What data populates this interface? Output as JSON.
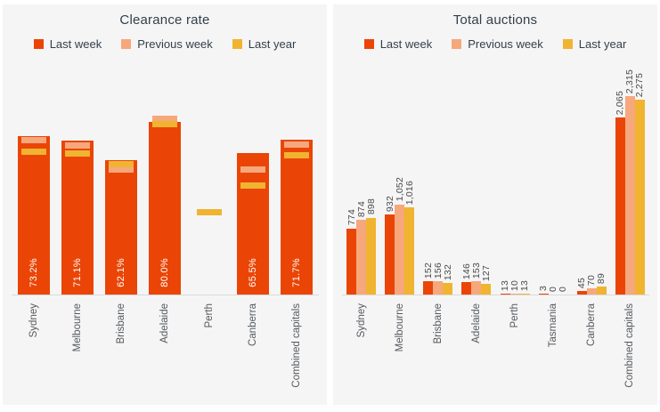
{
  "colors": {
    "last_week": "#EA4506",
    "previous_week": "#F6A87C",
    "last_year": "#F0B431",
    "panel_background": "#F5F5F6",
    "axis_line": "#D9D9D9",
    "title_text": "#333F48",
    "value_label_text": "#4A4A4A",
    "category_label_text": "#55595C",
    "bar_label_text": "#FFFFFF"
  },
  "chart_data": [
    {
      "type": "bar",
      "title": "Clearance rate",
      "legend_position": "top",
      "grid": false,
      "unit": "percent",
      "ylim": [
        0,
        95
      ],
      "categories": [
        "Sydney",
        "Melbourne",
        "Brisbane",
        "Adelaide",
        "Perth",
        "Canberra",
        "Combined capitals"
      ],
      "series": [
        {
          "name": "Last week",
          "render": "bar",
          "values": [
            73.2,
            71.1,
            62.1,
            80.0,
            null,
            65.5,
            71.7
          ],
          "labels": [
            "73.2%",
            "71.1%",
            "62.1%",
            "80.0%",
            "",
            "65.5%",
            "71.7%"
          ]
        },
        {
          "name": "Previous week",
          "render": "marker",
          "values": [
            71.3,
            69.1,
            57.8,
            81.4,
            null,
            57.7,
            69.3
          ]
        },
        {
          "name": "Last year",
          "render": "marker",
          "values": [
            66.0,
            65.0,
            60.4,
            78.7,
            38.2,
            50.5,
            64.4
          ]
        }
      ]
    },
    {
      "type": "bar",
      "title": "Total auctions",
      "legend_position": "top",
      "grid": false,
      "unit": "count",
      "ylim": [
        0,
        2400
      ],
      "categories": [
        "Sydney",
        "Melbourne",
        "Brisbane",
        "Adelaide",
        "Perth",
        "Tasmania",
        "Canberra",
        "Combined capitals"
      ],
      "series": [
        {
          "name": "Last week",
          "render": "bar",
          "values": [
            774,
            932,
            152,
            146,
            13,
            3,
            45,
            2065
          ],
          "labels": [
            "774",
            "932",
            "152",
            "146",
            "13",
            "3",
            "45",
            "2,065"
          ]
        },
        {
          "name": "Previous week",
          "render": "bar",
          "values": [
            874,
            1052,
            156,
            153,
            10,
            0,
            70,
            2315
          ],
          "labels": [
            "874",
            "1,052",
            "156",
            "153",
            "10",
            "0",
            "70",
            "2,315"
          ]
        },
        {
          "name": "Last year",
          "render": "bar",
          "values": [
            898,
            1016,
            132,
            127,
            13,
            0,
            89,
            2275
          ],
          "labels": [
            "898",
            "1,016",
            "132",
            "127",
            "13",
            "0",
            "89",
            "2,275"
          ]
        }
      ]
    }
  ]
}
